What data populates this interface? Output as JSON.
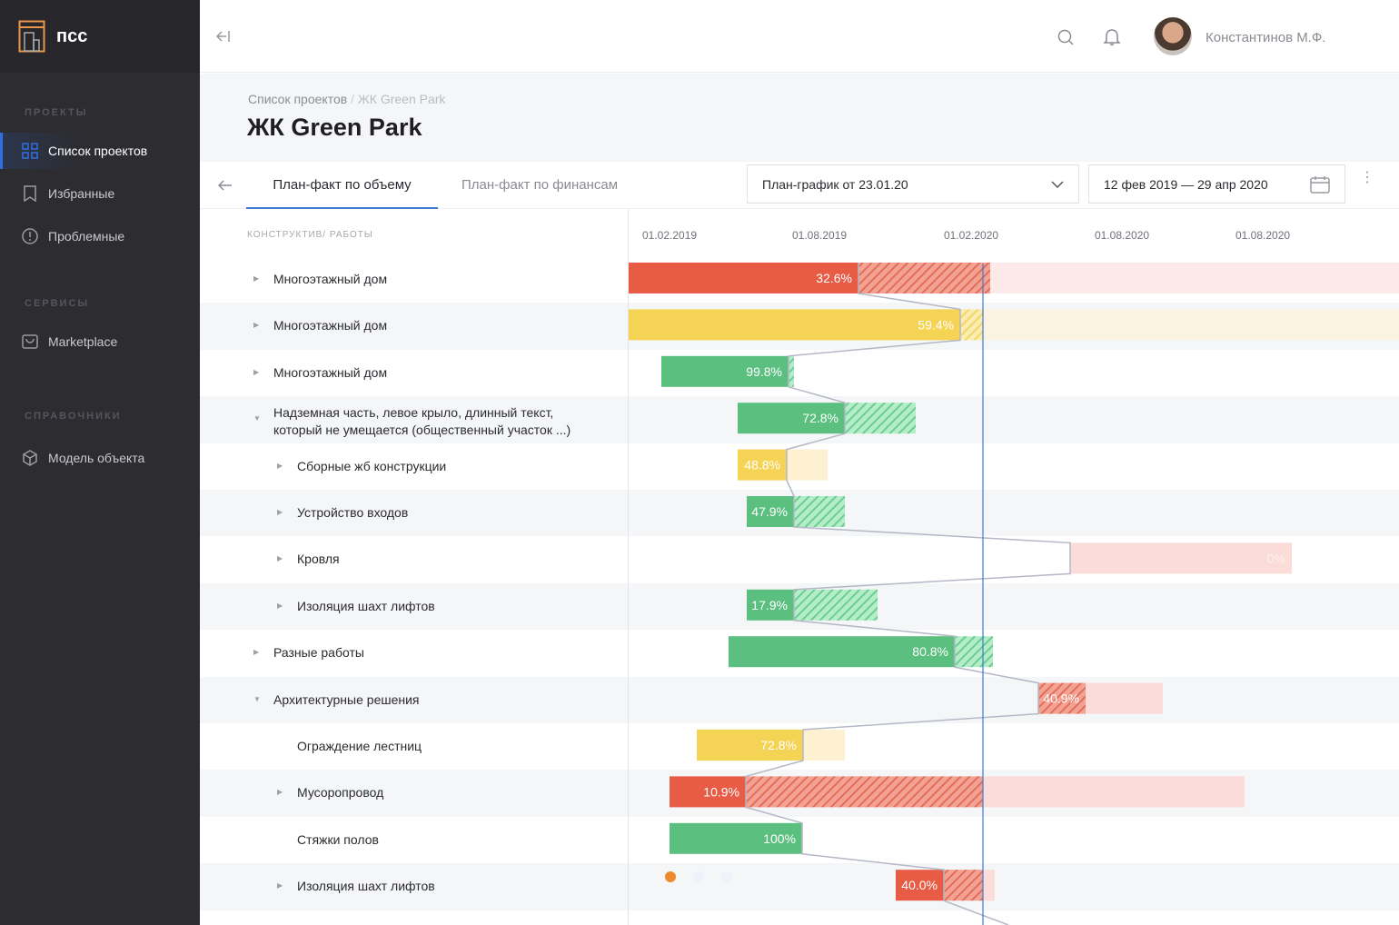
{
  "app": {
    "name": "псс"
  },
  "sidebar": {
    "sections": [
      {
        "title": "ПРОЕКТЫ",
        "items": [
          {
            "label": "Список проектов",
            "icon": "grid-icon",
            "active": true
          },
          {
            "label": "Избранные",
            "icon": "bookmark-icon"
          },
          {
            "label": "Проблемные",
            "icon": "alert-circle-icon"
          }
        ]
      },
      {
        "title": "СЕРВИСЫ",
        "items": [
          {
            "label": "Marketplace",
            "icon": "shop-icon"
          }
        ]
      },
      {
        "title": "СПРАВОЧНИКИ",
        "items": [
          {
            "label": "Модель объекта",
            "icon": "cube-icon"
          }
        ]
      }
    ]
  },
  "header": {
    "user": "Константинов М.Ф."
  },
  "breadcrumb": {
    "parent": "Список проектов",
    "sep": "/",
    "current": "ЖК Green Park"
  },
  "page_title": "ЖК Green Park",
  "tabs": [
    {
      "label": "План-факт по объему",
      "active": true
    },
    {
      "label": "План-факт по финансам"
    }
  ],
  "plan_select": {
    "value": "План-график от 23.01.20"
  },
  "date_range": {
    "value": "12 фев 2019 — 29 апр 2020"
  },
  "table": {
    "column_header": "КОНСТРУКТИВ/ РАБОТЫ",
    "timeline_ticks": [
      "01.02.2019",
      "01.08.2019",
      "01.02.2020",
      "01.08.2020",
      "01.08.2020"
    ],
    "rows": [
      {
        "label": "Многоэтажный дом",
        "level": 0,
        "caret": "right",
        "pct": "32.6%",
        "status": "red"
      },
      {
        "label": "Многоэтажный дом",
        "level": 0,
        "caret": "right",
        "pct": "59.4%",
        "status": "yellow"
      },
      {
        "label": "Многоэтажный дом",
        "level": 0,
        "caret": "right",
        "pct": "99.8%",
        "status": "green"
      },
      {
        "label": "Надземная часть, левое крыло, длинный текст, который не умещается (общественный участок ...)",
        "level": 0,
        "caret": "down",
        "pct": "72.8%",
        "status": "green"
      },
      {
        "label": "Сборные жб конструкции",
        "level": 1,
        "caret": "right",
        "pct": "48.8%",
        "status": "yellow"
      },
      {
        "label": "Устройство входов",
        "level": 1,
        "caret": "right",
        "pct": "47.9%",
        "status": "green"
      },
      {
        "label": "Кровля",
        "level": 1,
        "caret": "right",
        "pct": "0%",
        "status": "red"
      },
      {
        "label": "Изоляция шахт лифтов",
        "level": 1,
        "caret": "right",
        "pct": "17.9%",
        "status": "green"
      },
      {
        "label": "Разные работы",
        "level": 0,
        "caret": "right",
        "pct": "80.8%",
        "status": "green"
      },
      {
        "label": "Архитектурные решения",
        "level": 0,
        "caret": "down",
        "pct": "40.9%",
        "status": "red"
      },
      {
        "label": "Ограждение лестниц",
        "level": 1,
        "caret": "",
        "pct": "72.8%",
        "status": "yellow"
      },
      {
        "label": "Мусоропровод",
        "level": 1,
        "caret": "right",
        "pct": "10.9%",
        "status": "red"
      },
      {
        "label": "Стяжки полов",
        "level": 1,
        "caret": "",
        "pct": "100%",
        "status": "green"
      },
      {
        "label": "Изоляция шахт лифтов",
        "level": 1,
        "caret": "right",
        "pct": "40.0%",
        "status": "red"
      }
    ]
  },
  "colors": {
    "red": "#e85b45",
    "yellow": "#f5d355",
    "green": "#5bbf7f",
    "accent": "#2f6fe4",
    "today": "#3b7bd6",
    "sidebar": "#2c2c31"
  }
}
